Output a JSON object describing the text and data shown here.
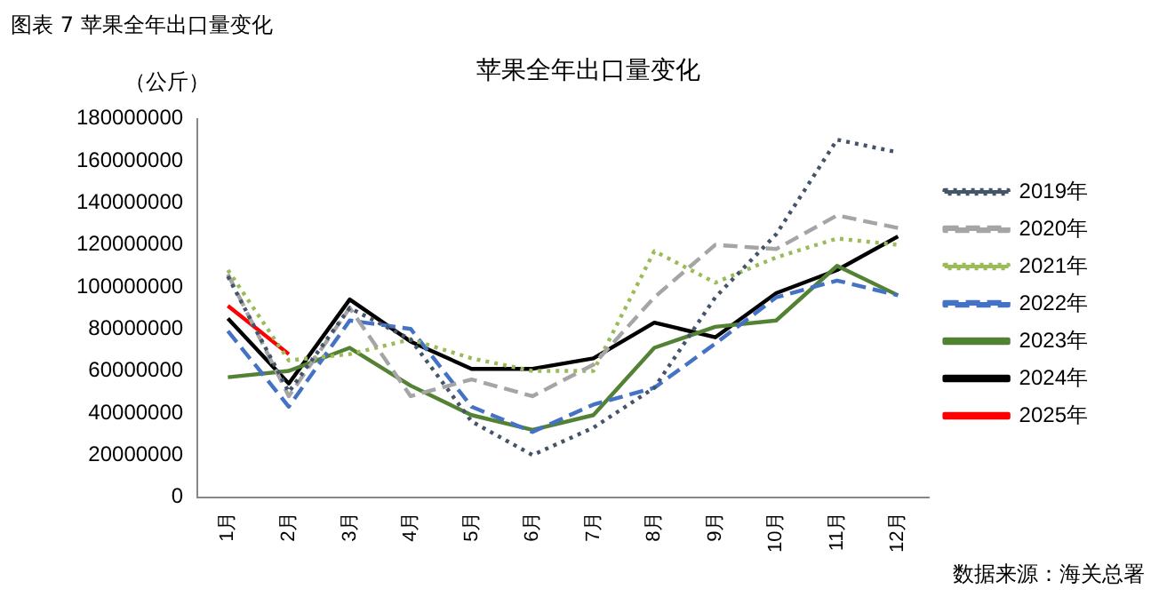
{
  "chart_data": {
    "type": "line",
    "title": "苹果全年出口量变化",
    "ylabel": "（公斤）",
    "annotations": [
      "图表 7  苹果全年出口量变化",
      "数据来源：海关总署"
    ],
    "categories": [
      "1月",
      "2月",
      "3月",
      "4月",
      "5月",
      "6月",
      "7月",
      "8月",
      "9月",
      "10月",
      "11月",
      "12月"
    ],
    "ylim": [
      0,
      180000000
    ],
    "yticks": [
      0,
      20000000,
      40000000,
      60000000,
      80000000,
      100000000,
      120000000,
      140000000,
      160000000,
      180000000
    ],
    "grid": false,
    "legend": "right",
    "marker": "none",
    "series": [
      {
        "name": "2019年",
        "color": "#44546a",
        "line_style": "dotted",
        "values": [
          105000000,
          50000000,
          90000000,
          75000000,
          36000000,
          20000000,
          33000000,
          52000000,
          95000000,
          125000000,
          170000000,
          164000000
        ]
      },
      {
        "name": "2020年",
        "color": "#a5a5a5",
        "line_style": "dashed",
        "values": [
          106000000,
          48000000,
          90000000,
          48000000,
          56000000,
          48000000,
          63000000,
          95000000,
          120000000,
          118000000,
          134000000,
          128000000
        ]
      },
      {
        "name": "2021年",
        "color": "#9bbb59",
        "line_style": "dotted",
        "values": [
          108000000,
          65000000,
          68000000,
          75000000,
          66000000,
          60000000,
          60000000,
          117000000,
          102000000,
          114000000,
          123000000,
          120000000
        ]
      },
      {
        "name": "2022年",
        "color": "#4472c4",
        "line_style": "dashed",
        "values": [
          79000000,
          43000000,
          84000000,
          80000000,
          43000000,
          31000000,
          44000000,
          52000000,
          73000000,
          95000000,
          103000000,
          96000000
        ]
      },
      {
        "name": "2023年",
        "color": "#548235",
        "line_style": "solid",
        "values": [
          57000000,
          60000000,
          71000000,
          53000000,
          39000000,
          32000000,
          39000000,
          71000000,
          81000000,
          84000000,
          110000000,
          96000000
        ]
      },
      {
        "name": "2024年",
        "color": "#000000",
        "line_style": "solid",
        "values": [
          85000000,
          54000000,
          94000000,
          74000000,
          61000000,
          61000000,
          66000000,
          83000000,
          76000000,
          97000000,
          108000000,
          124000000
        ]
      },
      {
        "name": "2025年",
        "color": "#ff0000",
        "line_style": "solid",
        "values": [
          91000000,
          68000000,
          null,
          null,
          null,
          null,
          null,
          null,
          null,
          null,
          null,
          null
        ]
      }
    ]
  }
}
